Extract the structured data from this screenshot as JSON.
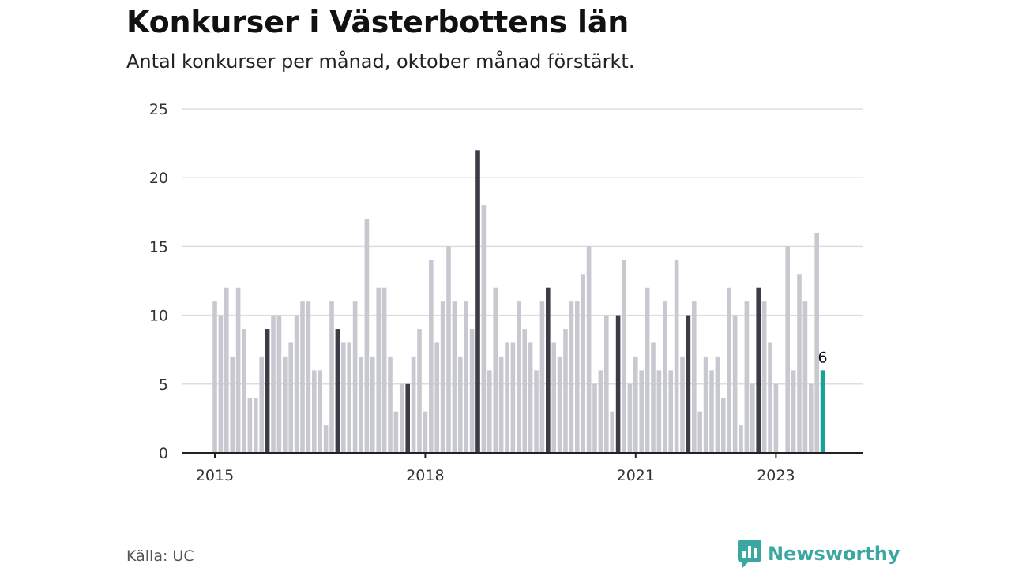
{
  "header": {
    "title": "Konkurser i Västerbottens län",
    "subtitle": "Antal konkurser per månad, oktober månad förstärkt."
  },
  "footer": {
    "source": "Källa: UC",
    "brand": "Newsworthy",
    "brand_icon": "bar-chart-speech-icon"
  },
  "colors": {
    "bar": "#c8c8d0",
    "highlight": "#3c3c46",
    "current": "#17a398",
    "grid": "#dddddd",
    "axis": "#222222",
    "brand": "#3aa7a0"
  },
  "chart_data": {
    "type": "bar",
    "title": "Konkurser i Västerbottens län",
    "subtitle": "Antal konkurser per månad, oktober månad förstärkt.",
    "start": "2015-01",
    "highlight_month": "oktober",
    "values": [
      11,
      10,
      12,
      7,
      12,
      9,
      4,
      4,
      7,
      9,
      10,
      10,
      7,
      8,
      10,
      11,
      11,
      6,
      6,
      2,
      11,
      9,
      8,
      8,
      11,
      7,
      17,
      7,
      12,
      12,
      7,
      3,
      5,
      5,
      7,
      9,
      3,
      14,
      8,
      11,
      15,
      11,
      7,
      11,
      9,
      22,
      18,
      6,
      12,
      7,
      8,
      8,
      11,
      9,
      8,
      6,
      11,
      12,
      8,
      7,
      9,
      11,
      11,
      13,
      15,
      5,
      6,
      10,
      3,
      10,
      14,
      5,
      7,
      6,
      12,
      8,
      6,
      11,
      6,
      14,
      7,
      10,
      11,
      3,
      7,
      6,
      7,
      4,
      12,
      10,
      2,
      11,
      5,
      12,
      11,
      8,
      5,
      0,
      15,
      6,
      13,
      11,
      5,
      16,
      6
    ],
    "x_ticks": [
      "2015",
      "2018",
      "2021",
      "2023"
    ],
    "ylim": [
      0,
      25
    ],
    "y_ticks": [
      0,
      5,
      10,
      15,
      20,
      25
    ],
    "annotation": "6",
    "grid": true,
    "legend": "none"
  }
}
